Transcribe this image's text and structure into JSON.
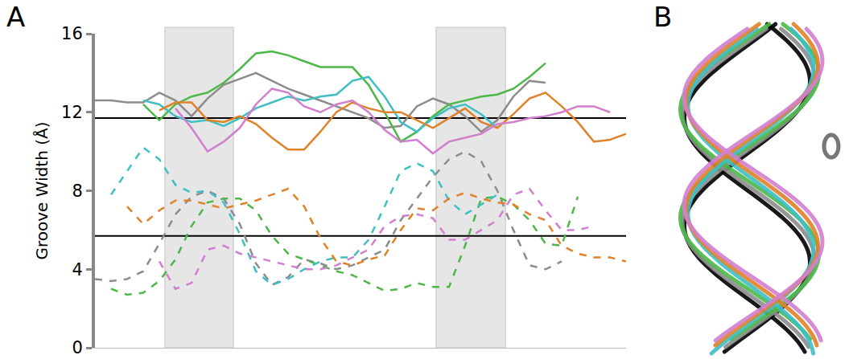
{
  "panel_labels": [
    "A",
    "B"
  ],
  "chart_data": {
    "type": "line",
    "y_label": "Groove Width (Å)",
    "x": [
      0,
      2,
      4,
      6,
      8,
      10,
      12,
      14,
      16,
      18,
      20,
      22,
      24,
      26,
      28,
      30,
      32,
      34,
      36,
      38,
      40,
      42,
      44,
      46,
      48,
      50,
      52,
      54,
      56,
      58,
      60,
      62,
      64,
      66
    ],
    "xlim": [
      0,
      66
    ],
    "ylim": [
      0,
      16
    ],
    "yticks": [
      0,
      4,
      8,
      12,
      16
    ],
    "tick_labels": "y",
    "grid": false,
    "reference_lines": [
      11.7,
      5.7
    ],
    "shaded_regions": [
      [
        8.7,
        17.2
      ],
      [
        42.4,
        51.0
      ]
    ],
    "series": [
      {
        "color": "#8c8c8c",
        "line_style": "solid",
        "values": [
          12.6,
          12.6,
          12.5,
          12.5,
          13.0,
          12.6,
          11.8,
          12.7,
          13.4,
          13.7,
          14.0,
          13.6,
          13.2,
          12.9,
          12.6,
          12.3,
          12.0,
          11.7,
          11.2,
          11.3,
          12.3,
          12.7,
          12.4,
          11.8,
          11.0,
          11.6,
          12.8,
          13.6,
          13.5,
          null,
          null,
          null,
          null,
          null
        ]
      },
      {
        "color": "#4cb848",
        "line_style": "solid",
        "values": [
          null,
          null,
          null,
          12.4,
          11.6,
          12.4,
          12.8,
          13.0,
          13.5,
          14.2,
          15.0,
          15.1,
          14.9,
          14.6,
          14.3,
          14.3,
          14.3,
          13.4,
          12.0,
          10.5,
          11.0,
          11.8,
          12.4,
          12.6,
          12.8,
          12.9,
          13.2,
          13.8,
          14.5,
          null,
          null,
          null,
          null,
          null
        ]
      },
      {
        "color": "#3fbfc4",
        "line_style": "solid",
        "values": [
          null,
          null,
          null,
          12.6,
          12.4,
          11.8,
          11.5,
          11.6,
          11.3,
          11.7,
          12.2,
          12.5,
          12.8,
          12.6,
          12.8,
          12.9,
          13.6,
          13.8,
          12.8,
          11.5,
          11.0,
          11.7,
          12.2,
          12.4,
          11.9,
          11.2,
          null,
          null,
          null,
          null,
          null,
          null,
          null,
          null
        ]
      },
      {
        "color": "#e0822a",
        "line_style": "solid",
        "values": [
          null,
          null,
          null,
          null,
          12.1,
          12.5,
          12.5,
          11.6,
          11.5,
          11.8,
          11.4,
          10.7,
          10.1,
          10.1,
          11.0,
          12.0,
          12.5,
          12.2,
          12.0,
          12.0,
          11.6,
          11.2,
          11.7,
          12.2,
          11.5,
          11.2,
          11.9,
          12.7,
          13.0,
          12.3,
          11.5,
          10.5,
          10.6,
          10.9
        ]
      },
      {
        "color": "#d27fcf",
        "line_style": "solid",
        "values": [
          null,
          null,
          null,
          null,
          null,
          12.2,
          11.2,
          10.0,
          10.5,
          11.2,
          12.4,
          13.2,
          13.0,
          12.3,
          12.0,
          12.4,
          12.6,
          12.0,
          11.1,
          10.5,
          10.6,
          9.9,
          10.5,
          10.7,
          10.9,
          11.4,
          11.5,
          11.7,
          11.8,
          12.0,
          12.3,
          12.3,
          12.0,
          null
        ]
      },
      {
        "color": "#8c8c8c",
        "line_style": "dashed",
        "values": [
          3.5,
          3.4,
          3.5,
          3.9,
          5.3,
          6.8,
          7.7,
          8.0,
          7.6,
          6.3,
          4.3,
          3.2,
          3.6,
          4.5,
          4.3,
          4.0,
          4.2,
          4.6,
          5.0,
          6.5,
          7.6,
          8.7,
          9.6,
          10.0,
          9.5,
          8.0,
          6.0,
          4.2,
          4.0,
          4.4,
          null,
          null,
          null,
          null
        ]
      },
      {
        "color": "#4cb848",
        "line_style": "dashed",
        "values": [
          null,
          3.0,
          2.7,
          2.8,
          3.4,
          4.5,
          6.2,
          7.4,
          7.6,
          7.6,
          7.0,
          5.7,
          4.8,
          4.5,
          4.2,
          3.9,
          3.7,
          3.3,
          2.9,
          3.0,
          3.3,
          3.1,
          3.1,
          5.2,
          7.6,
          7.7,
          7.3,
          6.5,
          5.3,
          5.2,
          7.7,
          null,
          null,
          null
        ]
      },
      {
        "color": "#3fbfc4",
        "line_style": "dashed",
        "values": [
          null,
          7.8,
          9.0,
          10.2,
          9.6,
          8.3,
          7.9,
          8.0,
          7.4,
          5.8,
          3.9,
          3.2,
          3.5,
          4.0,
          4.4,
          4.6,
          4.6,
          5.5,
          7.2,
          9.0,
          9.4,
          9.0,
          7.5,
          6.8,
          7.3,
          7.8,
          null,
          null,
          null,
          null,
          null,
          null,
          null,
          null
        ]
      },
      {
        "color": "#e0822a",
        "line_style": "dashed",
        "values": [
          null,
          null,
          7.2,
          6.3,
          7.0,
          7.5,
          7.5,
          7.3,
          7.1,
          7.3,
          7.5,
          7.8,
          8.1,
          7.2,
          5.6,
          4.4,
          4.2,
          4.5,
          4.7,
          6.0,
          7.1,
          7.0,
          7.6,
          7.9,
          7.6,
          7.4,
          7.3,
          6.8,
          6.5,
          5.2,
          4.8,
          4.6,
          4.6,
          4.4
        ]
      },
      {
        "color": "#d27fcf",
        "line_style": "dashed",
        "values": [
          null,
          null,
          null,
          null,
          4.4,
          3.0,
          3.3,
          5.0,
          5.2,
          4.8,
          4.6,
          4.4,
          4.2,
          4.0,
          4.0,
          4.2,
          4.6,
          5.0,
          6.2,
          6.7,
          6.8,
          6.6,
          5.5,
          5.5,
          6.0,
          6.5,
          7.8,
          8.1,
          7.0,
          6.0,
          6.0,
          6.2,
          null,
          null
        ]
      }
    ]
  }
}
